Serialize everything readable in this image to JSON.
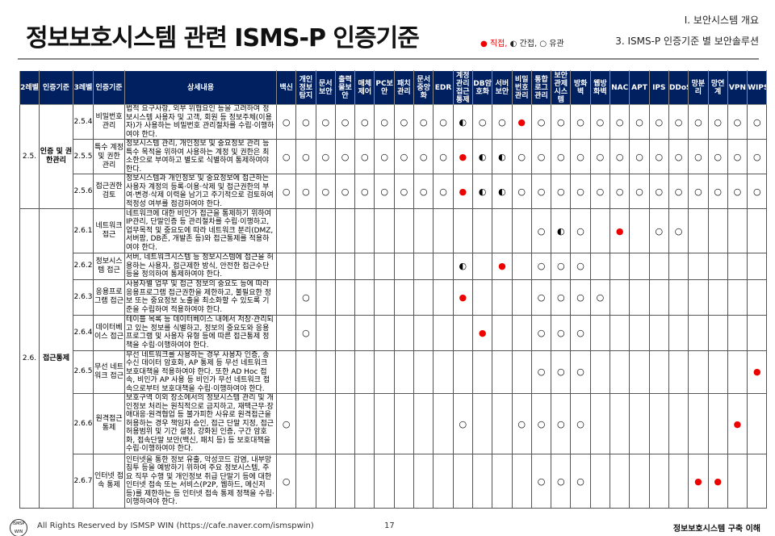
{
  "header": {
    "title": "정보보호시스템 관련 ISMS-P 인증기준",
    "section": "Ⅰ. 보안시스템 개요",
    "subsection": "3.  ISMS-P 인증기준 별 보안솔루션",
    "legend": {
      "direct": "● 직접,",
      "indirect": "◐ 간접,",
      "related": "○ 유관"
    }
  },
  "colors": {
    "header_bg": "#002060",
    "direct": "#ee0000"
  },
  "table": {
    "headers": [
      "2레벨",
      "인증기준",
      "3레벨",
      "인증기준",
      "상세내용"
    ],
    "products": [
      "백신",
      "개인정보탐지",
      "문서보안",
      "출력물보안",
      "매체제어",
      "PC보안",
      "패치관리",
      "문서중앙화",
      "EDR",
      "계정관리접근통제",
      "DB암호화",
      "서버보안",
      "비밀번호관리",
      "통합로그관리",
      "보안관제시스템",
      "방화벽",
      "웹방화벽",
      "NAC",
      "APT",
      "IPS",
      "DDoS",
      "망분리",
      "망연계",
      "VPN",
      "WIPS"
    ],
    "groups": [
      {
        "id": "2.5.",
        "name": "인증 및 권한관리"
      },
      {
        "id": "2.6.",
        "name": "접근통제"
      }
    ],
    "rows": [
      {
        "id": "2.5.4",
        "name": "비밀번호 관리",
        "desc": "법적 요구사항, 외부 위협요인 등을 고려하여 정보시스템 사용자 및  고객, 회원 등 정보주체(이용자)가 사용하는 비밀번호 관리절차를 수립·이행하여야 한다.",
        "marks": "RRRRRRRRRIRRDRRRRRRRRRRRR"
      },
      {
        "id": "2.5.5",
        "name": "특수 계정 및 권한 관리",
        "desc": "정보시스템 관리, 개인정보 및 중요정보 관리 등 특수 목적을 위하여 사용하는 계정 및 권한은 최소한으로 부여하고 별도로 식별하여 통제하여야 한다.",
        "marks": "RRRRRRRRRDIIRRRRRRRRRRRRR"
      },
      {
        "id": "2.5.6",
        "name": "접근권한 검토",
        "desc": "정보시스템과 개인정보 및 중요정보에 접근하는 사용자 계정의 등록·이용·삭제 및 접근권한의 부여·변경·삭제 이력을 남기고 주기적으로 검토하여 적정성 여부를 점검하여야 한다.",
        "marks": "RRRRRRRRRDIIRRRRRRRRRRRRR"
      },
      {
        "id": "2.6.1",
        "name": "네트워크 접근",
        "desc": "네트워크에 대한 비인가 접근을 통제하기 위하여 IP관리, 단말인증 등 관리절차를 수립·이행하고, 업무목적 및 중요도에 따라 네트워크 분리(DMZ, 서버팜, DB존, 개발존 등)와 접근통제를 적용하여야 한다.",
        "marks": "-------------RIR-D-RR----"
      },
      {
        "id": "2.6.2",
        "name": "정보시스템 접근",
        "desc": "서버, 네트워크시스템 등 정보시스템에 접근을 허용하는 사용자, 접근제한 방식, 안전한 접근수단 등을 정의하여 통제하여야 한다.",
        "marks": "---------I-D-RRR---------"
      },
      {
        "id": "2.6.3",
        "name": "응용프로그램 접근",
        "desc": "사용자별 업무 및 접근 정보의 중요도 등에 따라 응용프로그램 접근권한을 제한하고, 불필요한 정보 또는 중요정보 노출을 최소화할 수 있도록 기준을 수립하여 적용하여야 한다.",
        "marks": "-R-------D---RRRR--------"
      },
      {
        "id": "2.6.4",
        "name": "데이터베이스 접근",
        "desc": "테이블 목록 등 데이터베이스 내에서 저장·관리되고 있는 정보를 식별하고, 정보의 중요도와 응용프로그램 및 사용자 유형 등에 따른 접근통제 정책을 수립·이행하여야 한다.",
        "marks": "-R--------D--RRR---------"
      },
      {
        "id": "2.6.5",
        "name": "무선 네트워크 접근",
        "desc": "무선 네트워크를 사용하는 경우 사용자 인증, 송수신 데이터 암호화, AP 통제 등 무선 네트워크 보호대책을 적용하여야 한다. 또한 AD Hoc 접속, 비인가 AP 사용 등 비인가 무선 네트워크 접속으로부터 보호대책을 수립·이행하여야 한다.",
        "marks": "-------------RRR--------D"
      },
      {
        "id": "2.6.6",
        "name": "원격접근 통제",
        "desc": "보호구역 이외 장소에서의 정보시스템 관리 및 개인정보 처리는 원칙적으로 금지하고, 재택근무·장애대응·원격협업 등 불가피한 사유로 원격접근을 허용하는 경우 책임자 승인, 접근 단말 지정, 접근 허용범위 및 기간 설정, 강화된 인증, 구간 암호화, 접속단말 보안(백신, 패치 등) 등 보호대책을 수립·이행하여야 한다.",
        "marks": "R--------R--RRRR-------D-"
      },
      {
        "id": "2.6.7",
        "name": "인터넷 접속 통제",
        "desc": "인터넷을 통한 정보 유출, 악성코드 감염, 내부망 침투 등을 예방하기 위하여 주요 정보시스템, 주요 직무 수행 및 개인정보 취급 단말기 등에 대한 인터넷 접속 또는 서비스(P2P, 웹하드, 메신저 등)를 제한하는 등 인터넷 접속 통제 정책을 수립·이행하여야 한다.",
        "marks": "R------------RRR-----DD--"
      }
    ]
  },
  "footer": {
    "logo": "ISMSP WIN",
    "copyright": "All Rights Reserved by ISMSP WIN (https://cafe.naver.com/ismspwin)",
    "page": "17",
    "doc_title": "정보보호시스템 구축 이해"
  }
}
